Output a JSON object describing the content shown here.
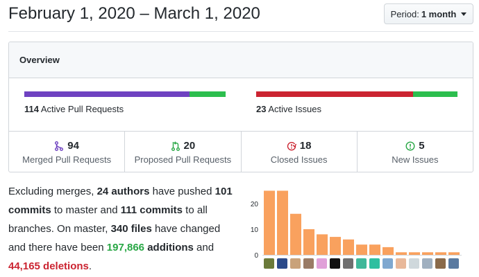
{
  "header": {
    "title": "February 1, 2020 – March 1, 2020",
    "period_prefix": "Period:",
    "period_value": "1 month"
  },
  "overview": {
    "title": "Overview",
    "pull_requests": {
      "count": "114",
      "label": "Active Pull Requests",
      "merged_fraction": 0.82,
      "open_fraction": 0.18
    },
    "issues": {
      "count": "23",
      "label": "Active Issues",
      "closed_fraction": 0.78,
      "open_fraction": 0.22
    },
    "stats": [
      {
        "count": "94",
        "label": "Merged Pull Requests",
        "icon": "merged-pr-icon",
        "color": "#6f42c1"
      },
      {
        "count": "20",
        "label": "Proposed Pull Requests",
        "icon": "open-pr-icon",
        "color": "#28a745"
      },
      {
        "count": "18",
        "label": "Closed Issues",
        "icon": "closed-issue-icon",
        "color": "#cb2431"
      },
      {
        "count": "5",
        "label": "New Issues",
        "icon": "new-issue-icon",
        "color": "#28a745"
      }
    ]
  },
  "summary": {
    "t1": "Excluding merges, ",
    "authors": "24 authors",
    "t2": " have pushed ",
    "master_commits": "101 commits",
    "t3": " to master and ",
    "all_commits": "111 commits",
    "t4": " to all branches. On master, ",
    "files": "340 files",
    "t5": " have changed and there have been ",
    "additions_count": "197,866",
    "additions_word": " additions",
    "t6": " and ",
    "deletions": "44,165 deletions",
    "t7": "."
  },
  "colors": {
    "merged": "#6f42c1",
    "open": "#2cbe4e",
    "closed_issue": "#cb2431",
    "bar": "#f9a15e"
  },
  "chart_data": {
    "type": "bar",
    "ylim": [
      0,
      27
    ],
    "yticks": [
      "0",
      "10",
      "20"
    ],
    "values": [
      25,
      25,
      16,
      10,
      8,
      7,
      6,
      4,
      4,
      3,
      1,
      1,
      1,
      1,
      1
    ]
  }
}
